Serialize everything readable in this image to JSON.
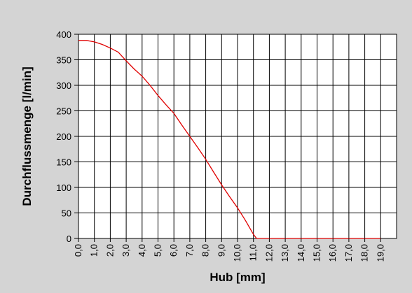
{
  "chart_data": {
    "type": "line",
    "title": "",
    "xlabel": "Hub [mm]",
    "ylabel": "Durchflussmenge [l/min]",
    "xlim": [
      0,
      19
    ],
    "ylim": [
      0,
      400
    ],
    "x_ticks": [
      "0,0",
      "1,0",
      "2,0",
      "3,0",
      "4,0",
      "5,0",
      "6,0",
      "7,0",
      "8,0",
      "9,0",
      "10,0",
      "11,0",
      "12,0",
      "13,0",
      "14,0",
      "15,0",
      "16,0",
      "17,0",
      "18,0",
      "19,0"
    ],
    "y_ticks": [
      "0",
      "50",
      "100",
      "150",
      "200",
      "250",
      "300",
      "350",
      "400"
    ],
    "grid": true,
    "series": [
      {
        "color": "#e00000",
        "x": [
          0,
          0.5,
          1.0,
          1.5,
          2.0,
          2.5,
          3.0,
          3.5,
          4.0,
          4.5,
          5.0,
          5.5,
          6.0,
          6.5,
          7.0,
          7.5,
          8.0,
          8.5,
          9.0,
          9.5,
          10.0,
          10.5,
          11.0,
          11.2,
          12.0,
          13.0,
          14.0,
          15.0,
          16.0,
          17.0,
          18.0,
          19.0
        ],
        "y": [
          388,
          388,
          385,
          380,
          373,
          365,
          348,
          332,
          318,
          300,
          280,
          262,
          245,
          222,
          200,
          178,
          155,
          130,
          105,
          82,
          60,
          35,
          8,
          0,
          0,
          0,
          0,
          0,
          0,
          0,
          0,
          0
        ]
      }
    ]
  }
}
